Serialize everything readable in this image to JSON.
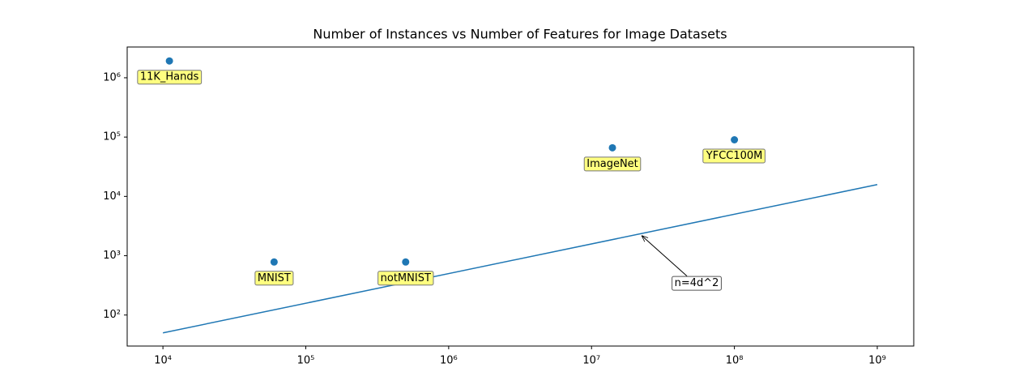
{
  "chart_data": {
    "type": "scatter",
    "title": "Number of Instances vs Number of Features for Image Datasets",
    "x": [
      11100,
      60000,
      500000,
      14000000,
      100000000
    ],
    "values": [
      1920000,
      784,
      784,
      66000,
      90000
    ],
    "labels": [
      "11K_Hands",
      "MNIST",
      "notMNIST",
      "ImageNet",
      "YFCC100M"
    ],
    "color": "#1f77b4",
    "label_color": "#ffff80",
    "line": {
      "x": [
        10000,
        1000000000
      ],
      "values": [
        50,
        15811
      ],
      "color": "#1f77b4"
    },
    "annotation": {
      "text": "n=4d^2",
      "xy": [
        22400000,
        2190
      ]
    },
    "xscale": "log",
    "yscale": "log",
    "xlim": [
      5620,
      1800000000
    ],
    "ylim": [
      30,
      3300000
    ],
    "xticks": [
      {
        "value": 10000,
        "label": "10⁴"
      },
      {
        "value": 100000,
        "label": "10⁵"
      },
      {
        "value": 1000000,
        "label": "10⁶"
      },
      {
        "value": 10000000,
        "label": "10⁷"
      },
      {
        "value": 100000000,
        "label": "10⁸"
      },
      {
        "value": 1000000000,
        "label": "10⁹"
      }
    ],
    "yticks": [
      {
        "value": 100,
        "label": "10²"
      },
      {
        "value": 1000,
        "label": "10³"
      },
      {
        "value": 10000,
        "label": "10⁴"
      },
      {
        "value": 100000,
        "label": "10⁵"
      },
      {
        "value": 1000000,
        "label": "10⁶"
      }
    ]
  }
}
